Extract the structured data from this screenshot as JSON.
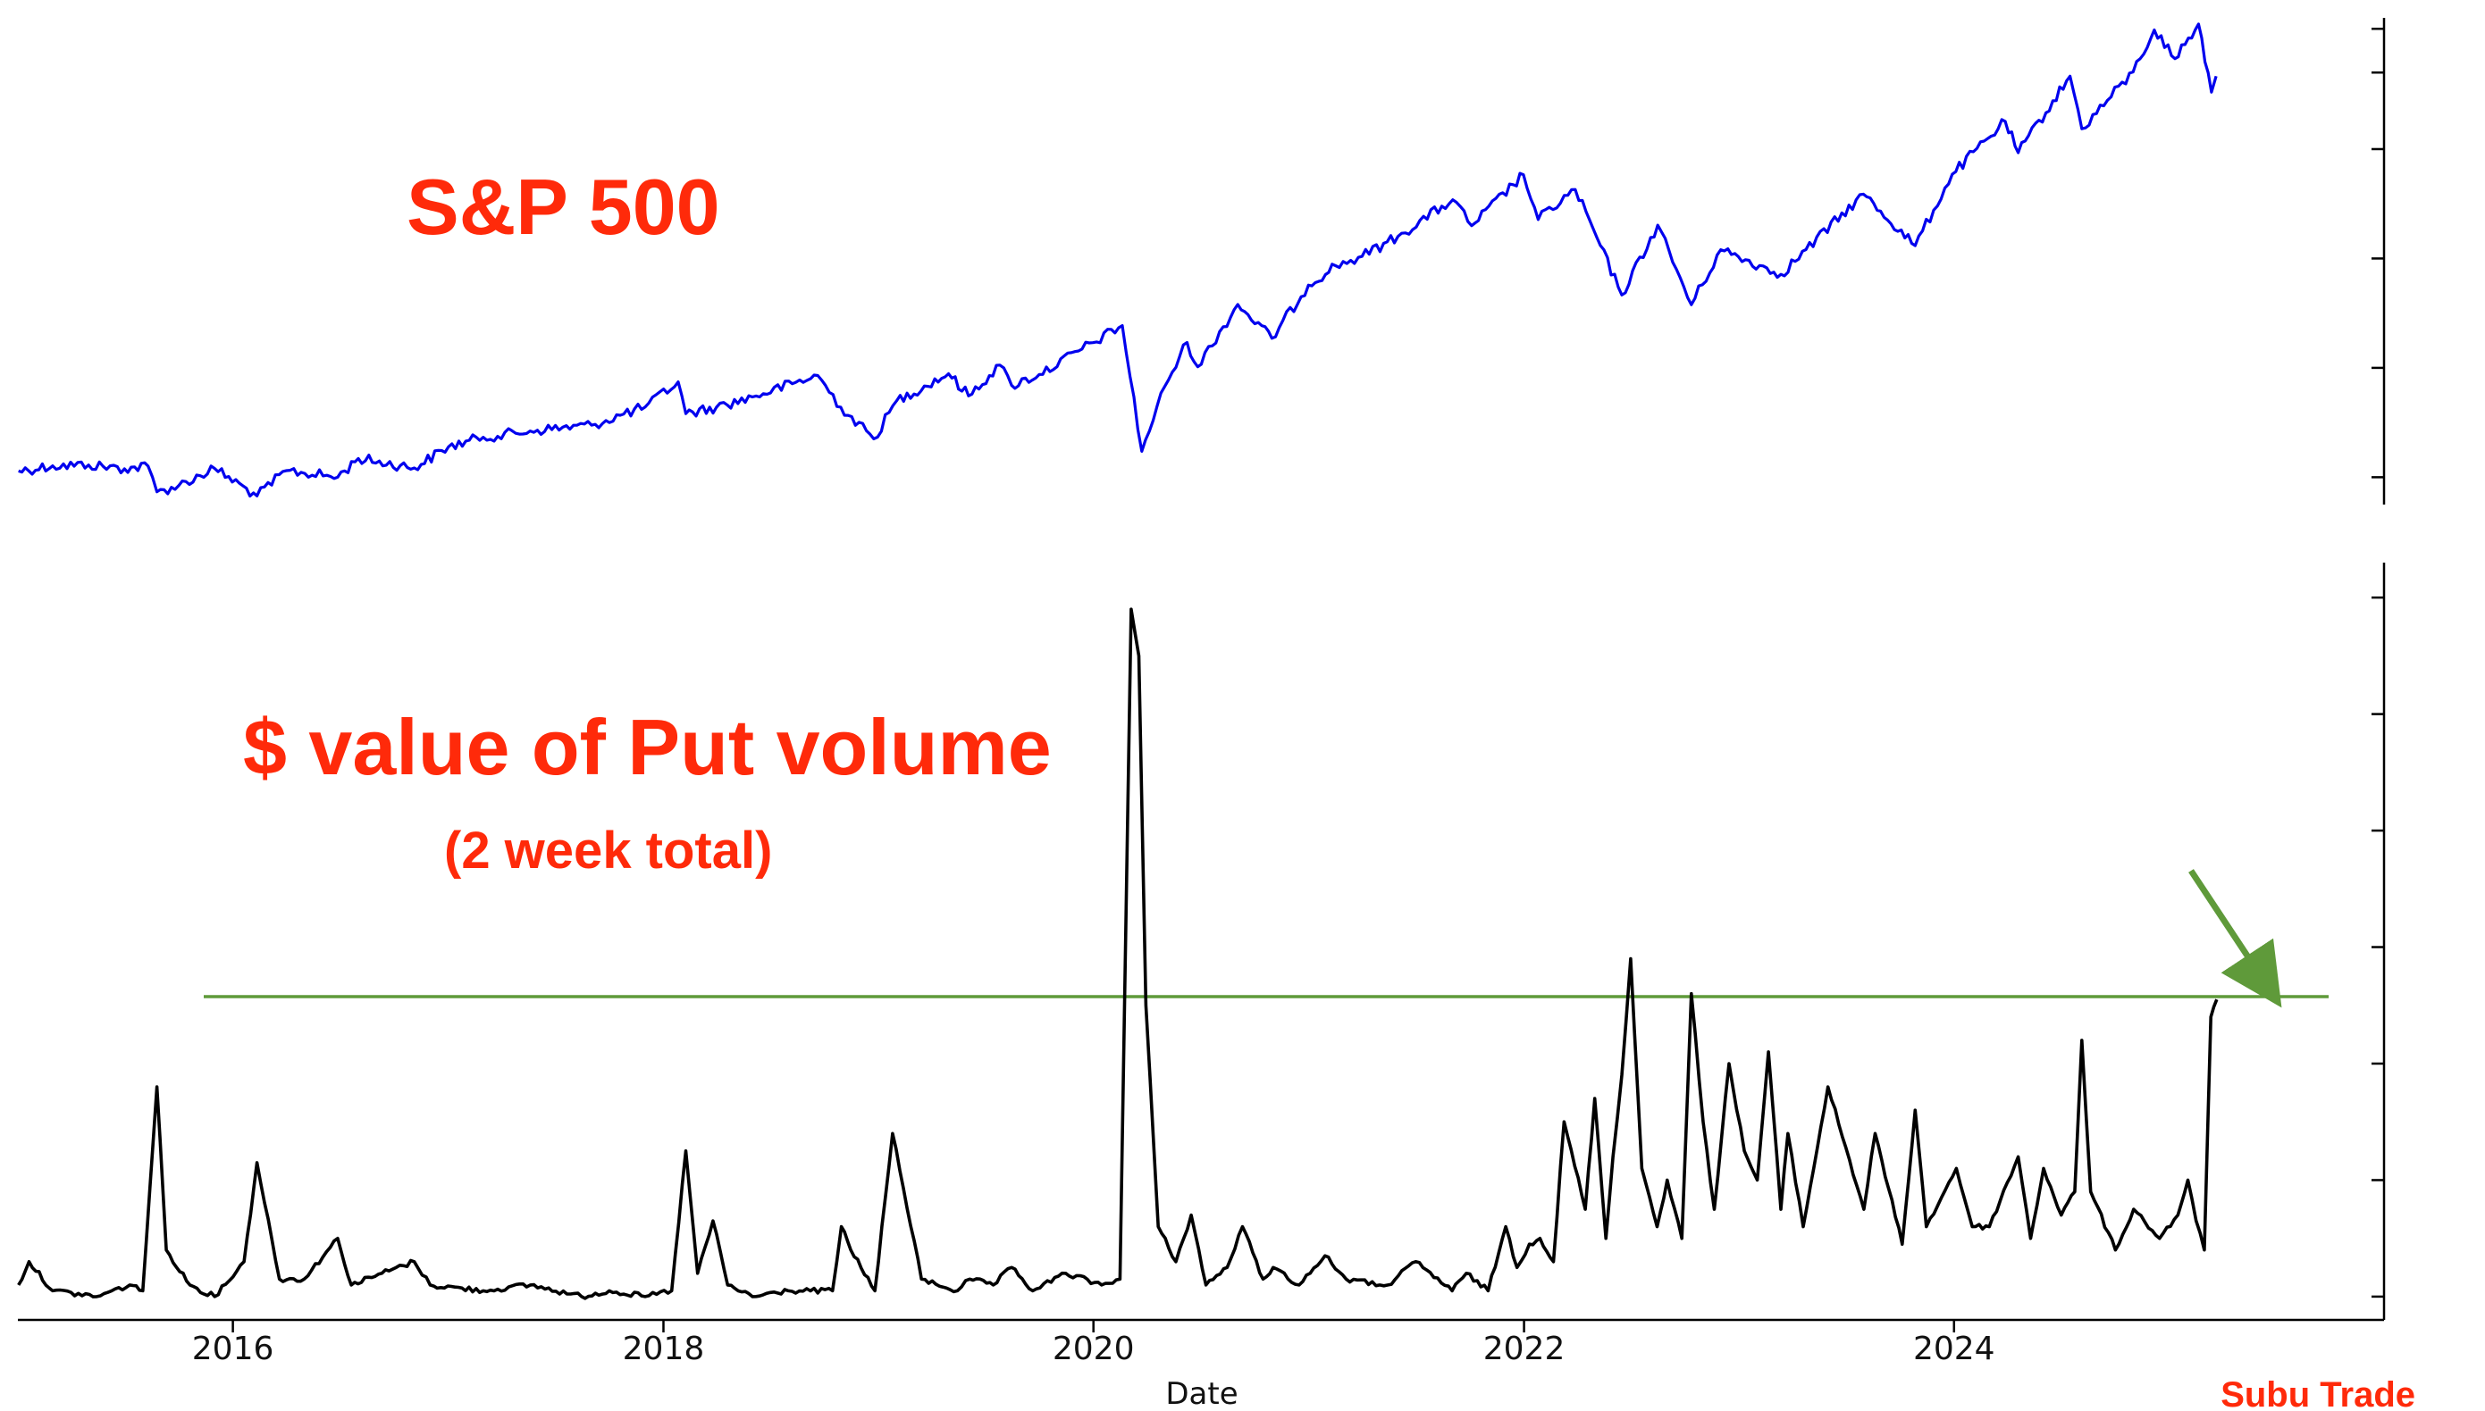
{
  "chart_data": {
    "type": "line",
    "xlabel": "Date",
    "x_ticks": [
      "2016",
      "2018",
      "2020",
      "2022",
      "2024"
    ],
    "colors": {
      "sp500": "#0000ee",
      "puts": "#000000",
      "threshold": "#5f9a3a",
      "arrow": "#5f9a3a",
      "annotation": "#ff2a0a"
    },
    "panels": [
      {
        "name": "S&P 500",
        "label": "S&P 500",
        "ylim": [
          1750,
          6200
        ],
        "y_tick_labels_visible": false,
        "y_tick_values": [
          2000,
          3000,
          4000,
          5000,
          5700,
          6100
        ],
        "x": [
          "2015-01-02",
          "2015-03-01",
          "2015-05-01",
          "2015-07-01",
          "2015-08-10",
          "2015-08-25",
          "2015-10-01",
          "2015-12-01",
          "2016-02-11",
          "2016-04-01",
          "2016-06-27",
          "2016-08-01",
          "2016-11-04",
          "2017-01-01",
          "2017-03-01",
          "2017-06-01",
          "2017-09-01",
          "2017-12-01",
          "2018-01-26",
          "2018-02-08",
          "2018-04-01",
          "2018-06-01",
          "2018-09-20",
          "2018-10-29",
          "2018-12-24",
          "2019-02-01",
          "2019-04-30",
          "2019-06-03",
          "2019-07-26",
          "2019-08-15",
          "2019-10-01",
          "2019-12-31",
          "2020-02-19",
          "2020-03-23",
          "2020-05-01",
          "2020-06-08",
          "2020-06-26",
          "2020-09-02",
          "2020-10-30",
          "2020-12-31",
          "2021-02-15",
          "2021-04-01",
          "2021-06-01",
          "2021-09-02",
          "2021-10-04",
          "2021-12-31",
          "2022-01-25",
          "2022-03-29",
          "2022-06-16",
          "2022-08-16",
          "2022-10-12",
          "2022-12-01",
          "2023-03-13",
          "2023-07-31",
          "2023-10-27",
          "2023-12-29",
          "2024-03-28",
          "2024-04-19",
          "2024-07-16",
          "2024-08-05",
          "2024-10-31",
          "2024-12-06",
          "2025-01-10",
          "2025-02-19",
          "2025-03-13",
          "2025-03-21"
        ],
        "values": [
          2058,
          2104,
          2112,
          2077,
          2102,
          1867,
          1923,
          2080,
          1829,
          2060,
          2000,
          2171,
          2085,
          2278,
          2366,
          2430,
          2476,
          2642,
          2872,
          2581,
          2640,
          2734,
          2930,
          2641,
          2351,
          2700,
          2946,
          2744,
          3025,
          2840,
          2940,
          3230,
          3386,
          2237,
          2830,
          3232,
          3010,
          3580,
          3270,
          3756,
          3934,
          4019,
          4202,
          4537,
          4300,
          4766,
          4356,
          4631,
          3666,
          4305,
          3577,
          4080,
          3855,
          4588,
          4117,
          4770,
          5254,
          4967,
          5667,
          5186,
          5705,
          6090,
          5827,
          6144,
          5521,
          5667
        ]
      },
      {
        "name": "$ value of Put volume",
        "label": "$ value of Put volume",
        "sublabel": "(2 week total)",
        "ylim": [
          -4,
          126
        ],
        "y_tick_labels_visible": false,
        "y_tick_values": [
          0,
          20,
          40,
          60,
          80,
          100,
          120
        ],
        "threshold": 51.5,
        "x": [
          "2015-01-02",
          "2015-01-20",
          "2015-03-01",
          "2015-05-15",
          "2015-07-10",
          "2015-08-01",
          "2015-08-25",
          "2015-09-10",
          "2015-10-20",
          "2015-12-01",
          "2016-01-20",
          "2016-02-11",
          "2016-03-20",
          "2016-05-01",
          "2016-06-27",
          "2016-07-20",
          "2016-09-10",
          "2016-11-04",
          "2016-12-01",
          "2017-03-01",
          "2017-05-20",
          "2017-08-15",
          "2017-10-01",
          "2017-12-01",
          "2018-01-15",
          "2018-02-08",
          "2018-02-28",
          "2018-03-26",
          "2018-04-20",
          "2018-06-01",
          "2018-08-01",
          "2018-10-15",
          "2018-10-30",
          "2018-11-15",
          "2018-12-26",
          "2019-01-25",
          "2019-03-15",
          "2019-05-15",
          "2019-06-05",
          "2019-07-15",
          "2019-08-15",
          "2019-09-20",
          "2019-11-15",
          "2020-01-15",
          "2020-02-15",
          "2020-03-05",
          "2020-03-18",
          "2020-03-30",
          "2020-04-20",
          "2020-05-20",
          "2020-06-15",
          "2020-07-10",
          "2020-08-15",
          "2020-09-10",
          "2020-10-15",
          "2020-11-01",
          "2020-12-15",
          "2021-01-28",
          "2021-03-05",
          "2021-05-01",
          "2021-05-15",
          "2021-07-01",
          "2021-09-01",
          "2021-09-25",
          "2021-11-01",
          "2021-12-01",
          "2021-12-20",
          "2022-01-10",
          "2022-01-28",
          "2022-02-20",
          "2022-03-10",
          "2022-04-15",
          "2022-05-01",
          "2022-05-20",
          "2022-06-01",
          "2022-06-16",
          "2022-07-01",
          "2022-07-20",
          "2022-08-15",
          "2022-09-01",
          "2022-09-26",
          "2022-10-12",
          "2022-11-01",
          "2022-11-20",
          "2022-12-15",
          "2023-01-10",
          "2023-02-01",
          "2023-02-20",
          "2023-03-13",
          "2023-03-25",
          "2023-04-20",
          "2023-06-01",
          "2023-08-01",
          "2023-08-20",
          "2023-10-05",
          "2023-10-27",
          "2023-11-15",
          "2024-01-05",
          "2024-02-01",
          "2024-03-01",
          "2024-04-19",
          "2024-05-10",
          "2024-06-01",
          "2024-07-01",
          "2024-07-24",
          "2024-08-05",
          "2024-08-20",
          "2024-10-01",
          "2024-11-01",
          "2024-12-15",
          "2025-01-15",
          "2025-02-01",
          "2025-02-15",
          "2025-03-01",
          "2025-03-12",
          "2025-03-22"
        ],
        "values": [
          2,
          6,
          1,
          0,
          2,
          1,
          36,
          8,
          2,
          0,
          6,
          23,
          3,
          3,
          10,
          2,
          4,
          6,
          2,
          1,
          2,
          0,
          1,
          0,
          1,
          25,
          4,
          13,
          2,
          0,
          1,
          1,
          12,
          8,
          1,
          28,
          3,
          1,
          3,
          2,
          5,
          1,
          4,
          2,
          3,
          118,
          110,
          50,
          12,
          6,
          14,
          2,
          5,
          12,
          3,
          5,
          2,
          7,
          3,
          2,
          2,
          6,
          1,
          4,
          1,
          12,
          5,
          9,
          10,
          6,
          30,
          15,
          34,
          10,
          24,
          38,
          58,
          22,
          12,
          20,
          10,
          52,
          30,
          15,
          40,
          25,
          20,
          42,
          15,
          28,
          12,
          36,
          15,
          28,
          9,
          32,
          12,
          22,
          12,
          12,
          24,
          10,
          22,
          14,
          18,
          44,
          18,
          8,
          15,
          10,
          14,
          20,
          13,
          8,
          48,
          51
        ]
      }
    ]
  },
  "annotations": {
    "sp500_title": "S&P 500",
    "puts_title": "$ value of Put volume",
    "puts_subtitle": "(2 week total)",
    "brand": "Subu Trade"
  }
}
